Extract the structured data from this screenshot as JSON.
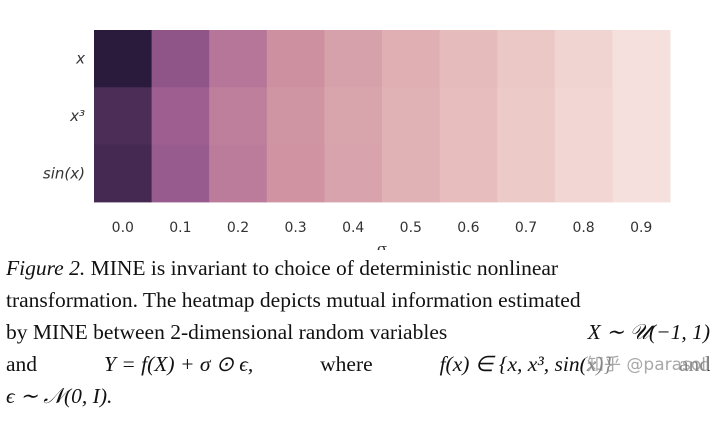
{
  "chart_data": {
    "type": "heatmap",
    "rows": [
      "x",
      "x³",
      "sin(x)"
    ],
    "columns": [
      "0.0",
      "0.1",
      "0.2",
      "0.3",
      "0.4",
      "0.5",
      "0.6",
      "0.7",
      "0.8",
      "0.9"
    ],
    "xlabel": "σ",
    "values": [
      [
        1.0,
        0.69,
        0.55,
        0.46,
        0.38,
        0.31,
        0.25,
        0.19,
        0.13,
        0.07
      ],
      [
        0.9,
        0.64,
        0.52,
        0.44,
        0.36,
        0.3,
        0.24,
        0.18,
        0.12,
        0.07
      ],
      [
        0.92,
        0.66,
        0.53,
        0.45,
        0.37,
        0.3,
        0.24,
        0.18,
        0.12,
        0.07
      ]
    ],
    "colormap": {
      "low": "#fbefea",
      "high": "#2a1b3d"
    }
  },
  "caption": {
    "figure_label": "Figure 2.",
    "line1_rest": "MINE is invariant to choice of deterministic nonlinear",
    "line2": "transformation. The heatmap depicts mutual information estimated",
    "line3_text": "by MINE between 2-dimensional random variables",
    "line3_math": "X ∼ 𝒰(−1, 1)",
    "line4_and": "and",
    "line4_math1": "Y = f(X) + σ ⊙ ϵ,",
    "line4_where": "where",
    "line4_math2": "f(x) ∈ {x, x³, sin(x)}",
    "line4_and2": "and",
    "line5_math": "ϵ ∼ 𝒩(0, I)."
  },
  "watermark": "知乎 @parasol"
}
